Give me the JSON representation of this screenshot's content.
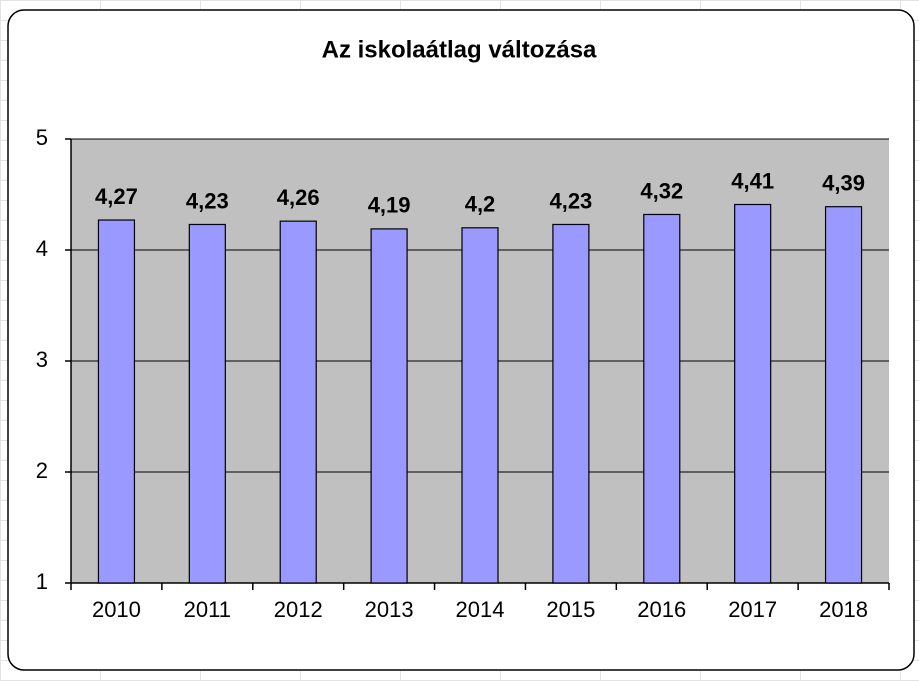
{
  "chart_data": {
    "type": "bar",
    "title": "Az iskolaátlag változása",
    "categories": [
      "2010",
      "2011",
      "2012",
      "2013",
      "2014",
      "2015",
      "2016",
      "2017",
      "2018"
    ],
    "values": [
      4.27,
      4.23,
      4.26,
      4.19,
      4.2,
      4.23,
      4.32,
      4.41,
      4.39
    ],
    "value_labels": [
      "4,27",
      "4,23",
      "4,26",
      "4,19",
      "4,2",
      "4,23",
      "4,32",
      "4,41",
      "4,39"
    ],
    "color": "#9999ff",
    "plot_background": "#c0c0c0",
    "ylim": [
      1,
      5
    ],
    "yticks": [
      1,
      2,
      3,
      4,
      5
    ],
    "grid": true
  }
}
